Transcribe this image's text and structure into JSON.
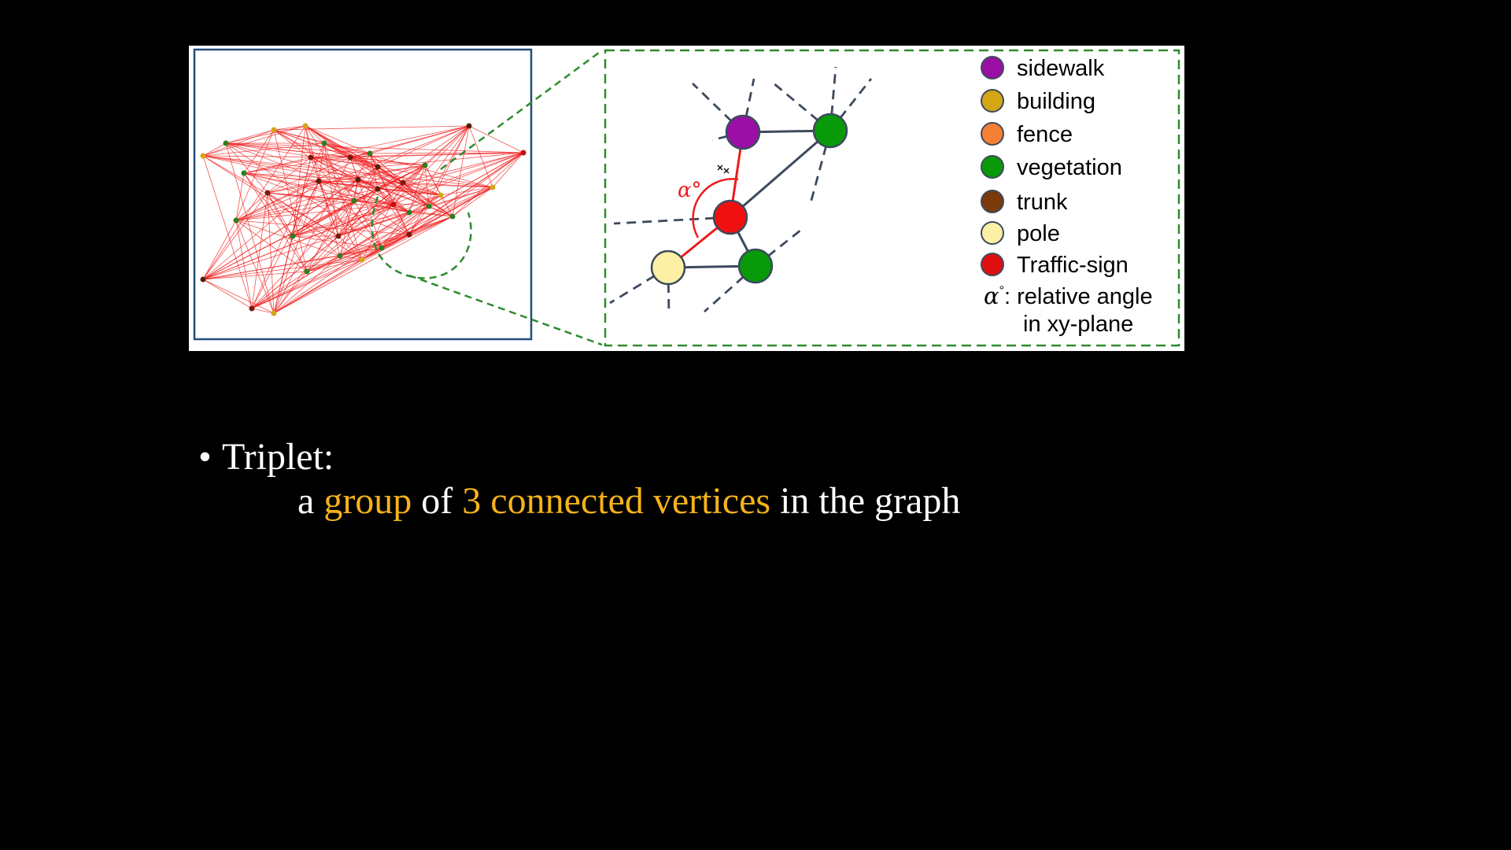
{
  "colors": {
    "background": "#000000",
    "highlight": "#f5b21a",
    "edge_red": "#ee1c1c",
    "edge_dark": "#3d4a5c",
    "dashed_green": "#2e8b2e",
    "frame_blue": "#1f4e79"
  },
  "legend": [
    {
      "label": "sidewalk",
      "color": "#9b0fa6"
    },
    {
      "label": "building",
      "color": "#d4a514"
    },
    {
      "label": "fence",
      "color": "#f57f35"
    },
    {
      "label": "vegetation",
      "color": "#089a08"
    },
    {
      "label": "trunk",
      "color": "#7a3a0c"
    },
    {
      "label": "pole",
      "color": "#fbf0a3"
    },
    {
      "label": "Traffic-sign",
      "color": "#e01010"
    }
  ],
  "angle": {
    "symbol": "α°",
    "legend_symbol": "α",
    "legend_line1": ": relative angle",
    "legend_line2": "in xy-plane"
  },
  "bullet": {
    "marker": "•",
    "title": "Triplet:",
    "seg1": "a ",
    "seg2": "group",
    "seg3": " of  ",
    "seg4": "3 connected vertices",
    "seg5": " in the graph"
  }
}
